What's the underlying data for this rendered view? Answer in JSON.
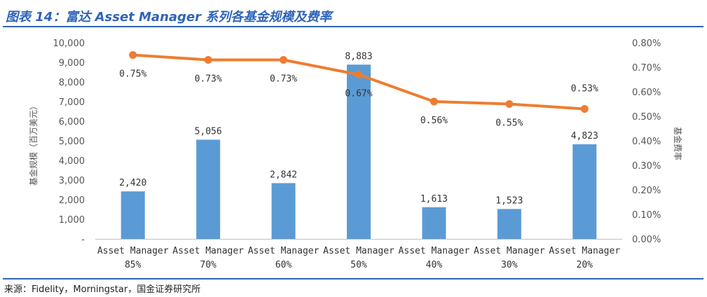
{
  "header": {
    "title": "图表 14：富达 Asset Manager 系列各基金规模及费率"
  },
  "footer": {
    "source": "来源：Fidelity，Morningstar，国金证券研究所"
  },
  "colors": {
    "bar": "#5b9bd5",
    "line": "#ed7d31",
    "accent": "#2f64b8"
  },
  "chart_data": {
    "type": "bar",
    "categories": [
      [
        "Asset Manager",
        "85%"
      ],
      [
        "Asset Manager",
        "70%"
      ],
      [
        "Asset Manager",
        "60%"
      ],
      [
        "Asset Manager",
        "50%"
      ],
      [
        "Asset Manager",
        "40%"
      ],
      [
        "Asset Manager",
        "30%"
      ],
      [
        "Asset Manager",
        "20%"
      ]
    ],
    "series": [
      {
        "type": "bar",
        "axis": "left",
        "values": [
          2420,
          5056,
          2842,
          8883,
          1613,
          1523,
          4823
        ],
        "labels": [
          "2,420",
          "5,056",
          "2,842",
          "8,883",
          "1,613",
          "1,523",
          "4,823"
        ]
      },
      {
        "type": "line",
        "axis": "right",
        "values": [
          0.75,
          0.73,
          0.73,
          0.67,
          0.56,
          0.55,
          0.53
        ],
        "labels": [
          "0.75%",
          "0.73%",
          "0.73%",
          "0.67%",
          "0.56%",
          "0.55%",
          "0.53%"
        ]
      }
    ],
    "ylabel": "基金规模（百万美元）",
    "y2label": "基金费率",
    "ylim": [
      0,
      10000
    ],
    "y2lim": [
      0,
      0.8
    ],
    "yticks": [
      "-",
      "1,000",
      "2,000",
      "3,000",
      "4,000",
      "5,000",
      "6,000",
      "7,000",
      "8,000",
      "9,000",
      "10,000"
    ],
    "y2ticks": [
      "0.00%",
      "0.10%",
      "0.20%",
      "0.30%",
      "0.40%",
      "0.50%",
      "0.60%",
      "0.70%",
      "0.80%"
    ],
    "grid": false,
    "legend": "none"
  }
}
